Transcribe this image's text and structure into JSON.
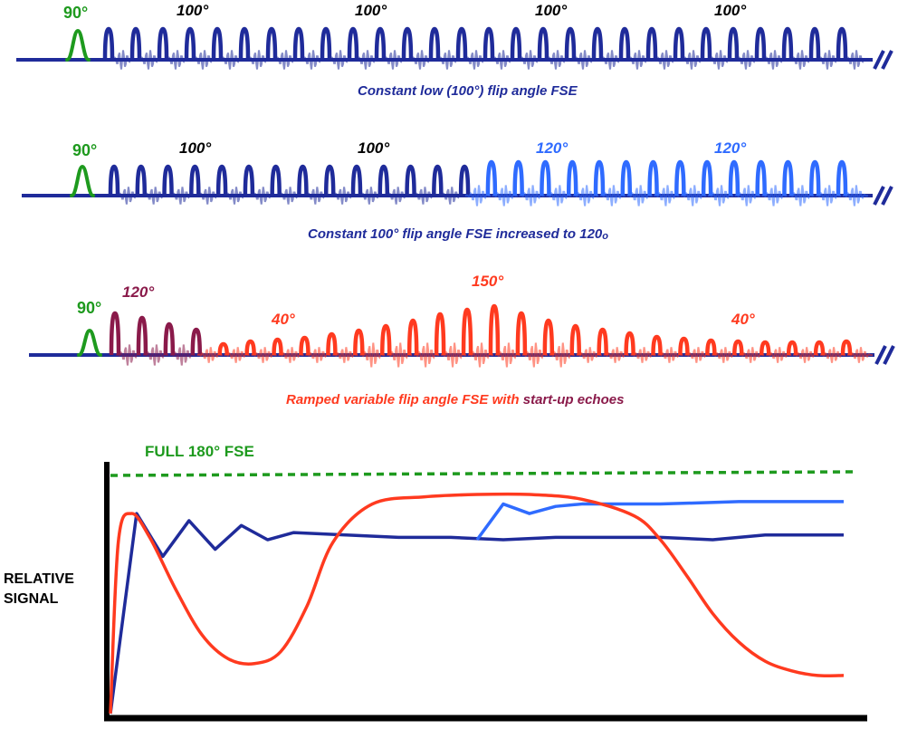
{
  "colors": {
    "dark_blue": "#1f2b9a",
    "light_blue": "#2f6bff",
    "green": "#1e9a1e",
    "red": "#ff3a1f",
    "maroon": "#8a1a4a",
    "black": "#000000"
  },
  "sequences": [
    {
      "excitation_label": "90°",
      "angle_labels": [
        "100°",
        "100°",
        "100°",
        "100°"
      ],
      "caption": "Constant low (100°) flip angle FSE",
      "echo_color_scheme": "dark-blue",
      "pulse_count": 28
    },
    {
      "excitation_label": "90°",
      "angle_labels": [
        "100°",
        "100°",
        "120°",
        "120°"
      ],
      "caption": "Constant 100° flip angle FSE increased to 120",
      "caption_suffix": "o",
      "echo_color_scheme": "dark-blue-then-light-blue",
      "pulse_count": 28
    },
    {
      "excitation_label": "90°",
      "angle_labels": [
        "120°",
        "40°",
        "150°",
        "40°"
      ],
      "caption_part1": "Ramped variable flip angle FSE with ",
      "caption_part2": "start-up echoes",
      "echo_color_scheme": "maroon-then-red",
      "pulse_count": 28
    }
  ],
  "chart_data": {
    "type": "line",
    "ylabel": "RELATIVE SIGNAL",
    "reference_label": "FULL 180° FSE",
    "reference_level": 1.0,
    "ylim": [
      0,
      1.0
    ],
    "x_range": [
      0,
      28
    ],
    "series": [
      {
        "color": "dark_blue",
        "x": [
          0,
          1,
          2,
          3,
          4,
          5,
          6,
          7,
          9,
          11,
          13,
          15,
          17,
          19,
          21,
          23,
          25,
          27,
          28
        ],
        "y": [
          0,
          0.84,
          0.66,
          0.81,
          0.69,
          0.79,
          0.73,
          0.76,
          0.75,
          0.74,
          0.74,
          0.73,
          0.74,
          0.74,
          0.74,
          0.73,
          0.75,
          0.75,
          0.75
        ]
      },
      {
        "color": "light_blue",
        "x": [
          14,
          15,
          16,
          17,
          18,
          21,
          24,
          28
        ],
        "y": [
          0.73,
          0.88,
          0.84,
          0.87,
          0.88,
          0.88,
          0.89,
          0.89
        ]
      },
      {
        "color": "red",
        "x": [
          0,
          0.3,
          0.8,
          1.5,
          2.5,
          3.5,
          4.5,
          5.5,
          6.5,
          7.5,
          8.5,
          10,
          12,
          14,
          16,
          18,
          20,
          21,
          22,
          23,
          24,
          25,
          26,
          27,
          28
        ],
        "y": [
          0,
          0.72,
          0.84,
          0.74,
          0.52,
          0.33,
          0.23,
          0.21,
          0.26,
          0.45,
          0.72,
          0.88,
          0.91,
          0.92,
          0.92,
          0.9,
          0.83,
          0.73,
          0.58,
          0.42,
          0.3,
          0.22,
          0.18,
          0.16,
          0.16
        ]
      }
    ]
  }
}
